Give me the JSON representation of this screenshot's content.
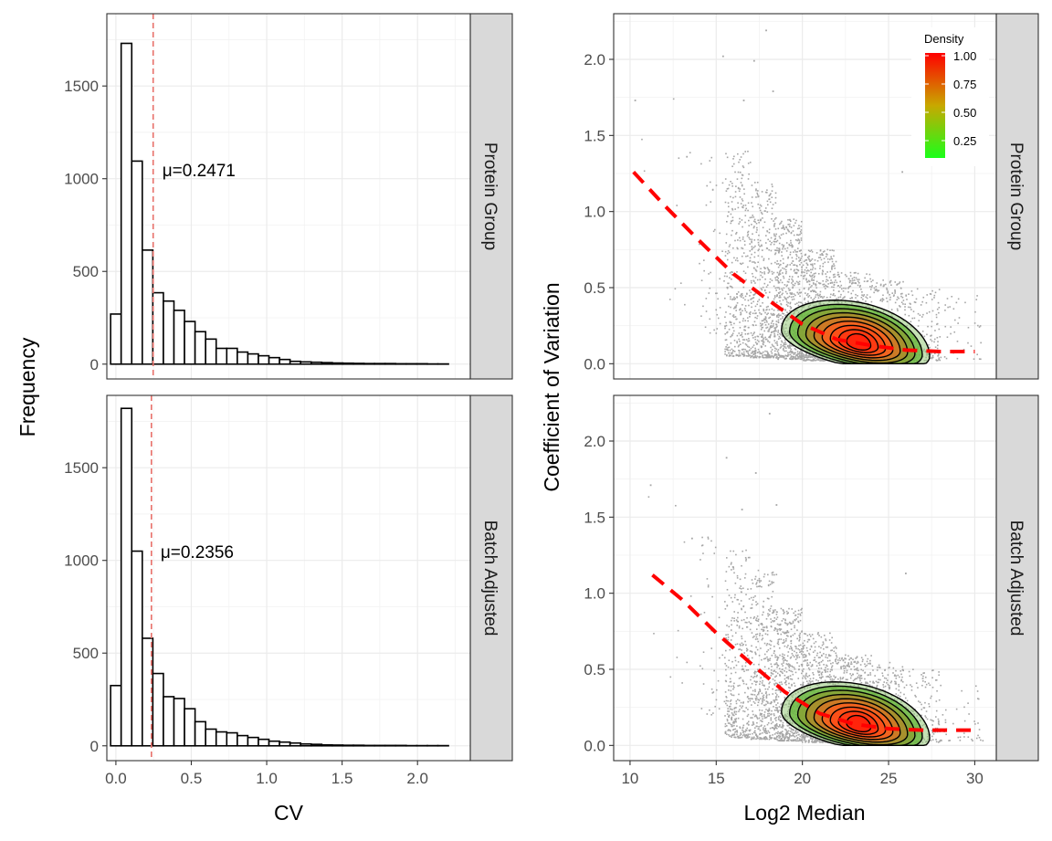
{
  "chart_data": [
    {
      "type": "bar",
      "panel": "histogram",
      "xlabel": "CV",
      "ylabel": "Frequency",
      "x_ticks": [
        "0.0",
        "0.5",
        "1.0",
        "1.5",
        "2.0"
      ],
      "y_ticks": [
        "0",
        "500",
        "1000",
        "1500"
      ],
      "xlim": [
        -0.06,
        2.35
      ],
      "ylim": [
        -80,
        1890
      ],
      "bin_width": 0.07,
      "grid": true,
      "facets": [
        {
          "strip": "Protein Group",
          "mean_line_x": 0.2471,
          "annotation": "μ=0.2471",
          "bin_starts": [
            -0.035,
            0.035,
            0.105,
            0.175,
            0.245,
            0.315,
            0.385,
            0.455,
            0.525,
            0.595,
            0.665,
            0.735,
            0.805,
            0.875,
            0.945,
            1.015,
            1.085,
            1.155,
            1.225,
            1.295,
            1.365,
            1.435,
            1.505,
            1.575,
            1.645,
            1.715,
            1.785,
            1.855,
            1.925,
            1.995,
            2.065,
            2.135
          ],
          "counts": [
            270,
            1730,
            1095,
            615,
            385,
            340,
            290,
            230,
            175,
            135,
            85,
            85,
            65,
            55,
            45,
            35,
            25,
            15,
            12,
            10,
            8,
            6,
            5,
            4,
            3,
            3,
            3,
            2,
            2,
            2,
            1,
            1
          ]
        },
        {
          "strip": "Batch Adjusted",
          "mean_line_x": 0.2356,
          "annotation": "μ=0.2356",
          "bin_starts": [
            -0.035,
            0.035,
            0.105,
            0.175,
            0.245,
            0.315,
            0.385,
            0.455,
            0.525,
            0.595,
            0.665,
            0.735,
            0.805,
            0.875,
            0.945,
            1.015,
            1.085,
            1.155,
            1.225,
            1.295,
            1.365,
            1.435,
            1.505,
            1.575,
            1.645,
            1.715,
            1.785,
            1.855,
            1.925,
            1.995,
            2.065,
            2.135
          ],
          "counts": [
            325,
            1820,
            1050,
            580,
            390,
            265,
            255,
            200,
            130,
            90,
            75,
            70,
            55,
            45,
            35,
            25,
            20,
            15,
            10,
            8,
            5,
            4,
            3,
            3,
            2,
            2,
            2,
            2,
            1,
            1,
            1,
            1
          ]
        }
      ]
    },
    {
      "type": "scatter",
      "panel": "cv-vs-median",
      "xlabel": "Log2 Median",
      "ylabel": "Coefficient of Variation",
      "x_ticks": [
        "10",
        "15",
        "20",
        "25",
        "30"
      ],
      "y_ticks": [
        "0.0",
        "0.5",
        "1.0",
        "1.5",
        "2.0"
      ],
      "xlim": [
        9.05,
        31.25
      ],
      "ylim": [
        -0.1,
        2.3
      ],
      "grid": true,
      "legend": {
        "title": "Density",
        "labels": [
          "1.00",
          "0.75",
          "0.50",
          "0.25"
        ],
        "colors": [
          "#ff0000",
          "#1aff1a"
        ],
        "placement": "top-right"
      },
      "colors": {
        "points": "#a6a6a6",
        "trend_line": "#ff0000",
        "contour_line": "#000000"
      },
      "facets": [
        {
          "strip": "Protein Group",
          "trend_x": [
            10.2,
            12,
            14,
            16,
            18,
            20,
            22,
            24,
            26,
            28,
            30
          ],
          "trend_y": [
            1.26,
            1.04,
            0.81,
            0.59,
            0.42,
            0.26,
            0.16,
            0.12,
            0.09,
            0.08,
            0.08
          ],
          "cloud_bins": [
            {
              "x": [
                10,
                14
              ],
              "n": 10,
              "ymin": 0.3,
              "ymax": 1.75
            },
            {
              "x": [
                14,
                15.5
              ],
              "n": 45,
              "ymin": 0.2,
              "ymax": 1.45
            },
            {
              "x": [
                15.5,
                17
              ],
              "n": 360,
              "ymin": 0.05,
              "ymax": 1.4
            },
            {
              "x": [
                17,
                18.5
              ],
              "n": 460,
              "ymin": 0.04,
              "ymax": 1.2
            },
            {
              "x": [
                18.5,
                20
              ],
              "n": 560,
              "ymin": 0.03,
              "ymax": 0.95
            },
            {
              "x": [
                20,
                22
              ],
              "n": 620,
              "ymin": 0.02,
              "ymax": 0.75
            },
            {
              "x": [
                22,
                24
              ],
              "n": 520,
              "ymin": 0.02,
              "ymax": 0.6
            },
            {
              "x": [
                24,
                26
              ],
              "n": 320,
              "ymin": 0.02,
              "ymax": 0.55
            },
            {
              "x": [
                26,
                28
              ],
              "n": 150,
              "ymin": 0.02,
              "ymax": 0.5
            },
            {
              "x": [
                28,
                30.5
              ],
              "n": 40,
              "ymin": 0.03,
              "ymax": 0.45
            }
          ],
          "outliers": [
            [
              10.3,
              1.73
            ],
            [
              15.4,
              2.02
            ],
            [
              17.9,
              2.19
            ],
            [
              17.2,
              1.99
            ],
            [
              16.6,
              1.73
            ],
            [
              18.3,
              1.79
            ],
            [
              25.8,
              1.26
            ],
            [
              13.3,
              1.36
            ]
          ]
        },
        {
          "strip": "Batch Adjusted",
          "trend_x": [
            11.3,
            13,
            15,
            17,
            19,
            21,
            23,
            25,
            27,
            29,
            30
          ],
          "trend_y": [
            1.12,
            0.96,
            0.74,
            0.54,
            0.35,
            0.21,
            0.14,
            0.11,
            0.1,
            0.1,
            0.1
          ],
          "cloud_bins": [
            {
              "x": [
                11,
                14
              ],
              "n": 10,
              "ymin": 0.4,
              "ymax": 1.7
            },
            {
              "x": [
                14,
                15.5
              ],
              "n": 40,
              "ymin": 0.2,
              "ymax": 1.4
            },
            {
              "x": [
                15.5,
                17
              ],
              "n": 340,
              "ymin": 0.05,
              "ymax": 1.3
            },
            {
              "x": [
                17,
                18.5
              ],
              "n": 440,
              "ymin": 0.04,
              "ymax": 1.15
            },
            {
              "x": [
                18.5,
                20
              ],
              "n": 540,
              "ymin": 0.03,
              "ymax": 0.9
            },
            {
              "x": [
                20,
                22
              ],
              "n": 600,
              "ymin": 0.02,
              "ymax": 0.75
            },
            {
              "x": [
                22,
                24
              ],
              "n": 500,
              "ymin": 0.02,
              "ymax": 0.6
            },
            {
              "x": [
                24,
                26
              ],
              "n": 320,
              "ymin": 0.02,
              "ymax": 0.55
            },
            {
              "x": [
                26,
                28
              ],
              "n": 150,
              "ymin": 0.02,
              "ymax": 0.5
            },
            {
              "x": [
                28,
                30.5
              ],
              "n": 40,
              "ymin": 0.03,
              "ymax": 0.4
            }
          ],
          "outliers": [
            [
              11.2,
              1.71
            ],
            [
              15.6,
              1.89
            ],
            [
              18.1,
              2.18
            ],
            [
              17.3,
              1.79
            ],
            [
              16.5,
              1.55
            ],
            [
              18.5,
              1.58
            ],
            [
              26.0,
              1.13
            ],
            [
              13.6,
              1.36
            ]
          ]
        }
      ]
    }
  ]
}
